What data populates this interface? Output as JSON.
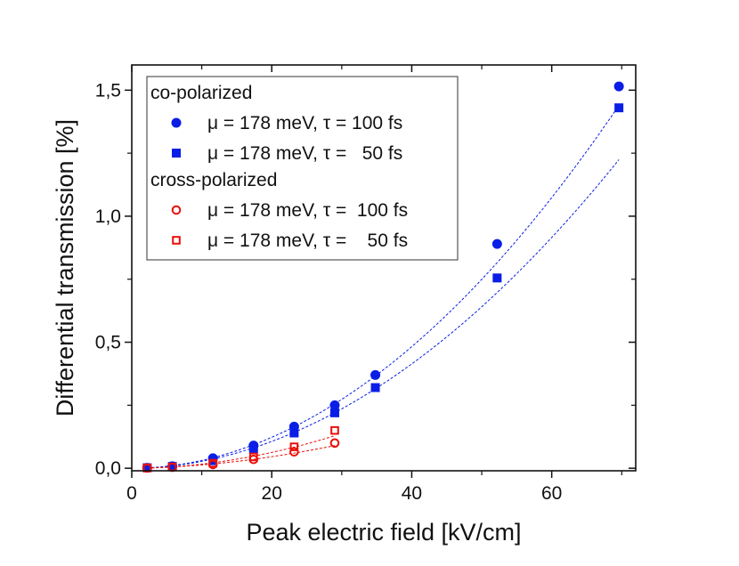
{
  "chart_data": {
    "type": "scatter",
    "xlabel": "Peak electric field [kV/cm]",
    "ylabel": "Differential transmission [%]",
    "xlim": [
      0,
      72
    ],
    "ylim": [
      -0.01,
      1.6
    ],
    "x_ticks": [
      0,
      20,
      40,
      60
    ],
    "x_tick_labels": [
      "0",
      "20",
      "40",
      "60"
    ],
    "y_ticks": [
      0.0,
      0.5,
      1.0,
      1.5
    ],
    "y_tick_labels": [
      "0,0",
      "0,5",
      "1,0",
      "1,5"
    ],
    "grid": false,
    "legend_position": "top-left",
    "legend_groups": [
      {
        "label": "co-polarized",
        "series_indices": [
          0,
          1
        ]
      },
      {
        "label": "cross-polarized",
        "series_indices": [
          2,
          3
        ]
      }
    ],
    "series": [
      {
        "name": "μ = 178 meV, τ = 100 fs",
        "group": "co-polarized",
        "marker": "circle",
        "filled": true,
        "color": "#0a1ee6",
        "fit_line": true,
        "x": [
          2.2,
          5.8,
          11.6,
          17.4,
          23.2,
          29.0,
          34.8,
          52.2,
          69.6
        ],
        "y": [
          0.002,
          0.008,
          0.04,
          0.09,
          0.165,
          0.25,
          0.37,
          0.89,
          1.515
        ]
      },
      {
        "name": "μ = 178 meV, τ =   50 fs",
        "group": "co-polarized",
        "marker": "square",
        "filled": true,
        "color": "#0a1ee6",
        "fit_line": true,
        "x": [
          2.2,
          5.8,
          11.6,
          17.4,
          23.2,
          29.0,
          34.8,
          52.2,
          69.6
        ],
        "y": [
          0.002,
          0.007,
          0.03,
          0.075,
          0.14,
          0.22,
          0.32,
          0.755,
          1.43
        ]
      },
      {
        "name": "μ = 178 meV, τ =  100 fs",
        "group": "cross-polarized",
        "marker": "circle",
        "filled": false,
        "color": "#e8100a",
        "fit_line": true,
        "x": [
          2.2,
          5.8,
          11.6,
          17.4,
          23.2,
          29.0
        ],
        "y": [
          0.001,
          0.004,
          0.015,
          0.035,
          0.065,
          0.1
        ]
      },
      {
        "name": "μ = 178 meV, τ =    50 fs",
        "group": "cross-polarized",
        "marker": "square",
        "filled": false,
        "color": "#e8100a",
        "fit_line": true,
        "x": [
          2.2,
          5.8,
          11.6,
          17.4,
          23.2,
          29.0
        ],
        "y": [
          0.001,
          0.005,
          0.02,
          0.045,
          0.085,
          0.15
        ]
      }
    ]
  }
}
